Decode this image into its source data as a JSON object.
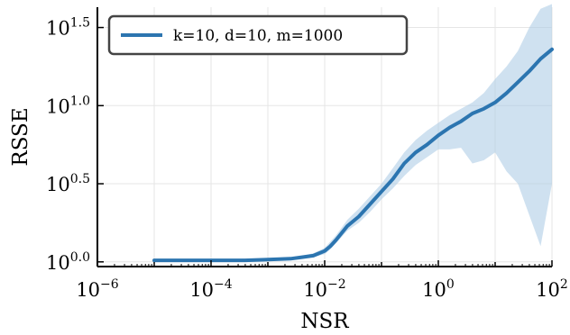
{
  "chart_data": {
    "type": "line",
    "xlabel": "NSR",
    "ylabel": "RSSE",
    "xscale": "log",
    "yscale": "log",
    "xlim": [
      1e-06,
      100
    ],
    "ylim_log10": [
      -0.03,
      1.63
    ],
    "grid": true,
    "legend_position": "top-left",
    "x_ticks": [
      {
        "base": "10",
        "exp": "−6",
        "value": 1e-06
      },
      {
        "base": "10",
        "exp": "−4",
        "value": 0.0001
      },
      {
        "base": "10",
        "exp": "−2",
        "value": 0.01
      },
      {
        "base": "10",
        "exp": "0",
        "value": 1
      },
      {
        "base": "10",
        "exp": "2",
        "value": 100
      }
    ],
    "y_ticks": [
      {
        "base": "10",
        "exp": "0.0",
        "log10": 0.0
      },
      {
        "base": "10",
        "exp": "0.5",
        "log10": 0.5
      },
      {
        "base": "10",
        "exp": "1.0",
        "log10": 1.0
      },
      {
        "base": "10",
        "exp": "1.5",
        "log10": 1.5
      }
    ],
    "series": [
      {
        "name": "k=10, d=10, m=1000",
        "color": "#2c75b0",
        "band_color": "#a7c8e3",
        "log10_x": [
          -5.0,
          -4.6,
          -4.2,
          -3.8,
          -3.4,
          -3.0,
          -2.6,
          -2.4,
          -2.2,
          -2.0,
          -1.9,
          -1.8,
          -1.6,
          -1.4,
          -1.2,
          -1.0,
          -0.8,
          -0.6,
          -0.4,
          -0.2,
          0.0,
          0.2,
          0.4,
          0.6,
          0.8,
          1.0,
          1.2,
          1.4,
          1.6,
          1.8,
          2.0
        ],
        "log10_y": [
          0.01,
          0.01,
          0.01,
          0.01,
          0.01,
          0.015,
          0.02,
          0.03,
          0.04,
          0.07,
          0.1,
          0.14,
          0.23,
          0.29,
          0.37,
          0.45,
          0.53,
          0.63,
          0.7,
          0.75,
          0.81,
          0.86,
          0.9,
          0.95,
          0.98,
          1.02,
          1.08,
          1.15,
          1.22,
          1.3,
          1.36
        ],
        "log10_lower": [
          0.005,
          0.005,
          0.005,
          0.005,
          0.005,
          0.01,
          0.015,
          0.022,
          0.03,
          0.05,
          0.08,
          0.12,
          0.2,
          0.25,
          0.32,
          0.4,
          0.47,
          0.55,
          0.62,
          0.67,
          0.72,
          0.72,
          0.73,
          0.63,
          0.65,
          0.7,
          0.58,
          0.5,
          0.3,
          0.1,
          0.5
        ],
        "log10_upper": [
          0.015,
          0.015,
          0.015,
          0.015,
          0.02,
          0.022,
          0.03,
          0.04,
          0.055,
          0.09,
          0.13,
          0.17,
          0.27,
          0.34,
          0.42,
          0.5,
          0.6,
          0.7,
          0.78,
          0.84,
          0.89,
          0.94,
          0.98,
          1.02,
          1.08,
          1.17,
          1.25,
          1.35,
          1.5,
          1.62,
          1.65
        ]
      }
    ]
  }
}
